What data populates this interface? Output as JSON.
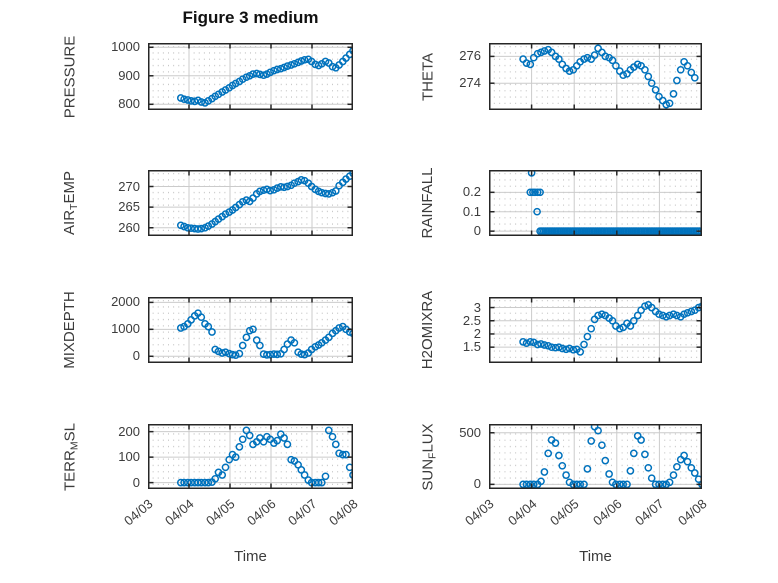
{
  "figure": {
    "title": "Figure 3 medium",
    "background": "#ffffff",
    "grid": true,
    "minor_grid": true,
    "box": true,
    "legend": "none"
  },
  "style": {
    "marker_color": "#0072BD",
    "axis_color": "#262626",
    "major_grid_color": "#cbcbcb",
    "minor_grid_color": "#c0c0c0",
    "text_color": "#3c3c3c",
    "marker": "open-circle"
  },
  "x_axis": {
    "label": "Time",
    "xlim": [
      0,
      5
    ],
    "ticks": [
      0,
      1,
      2,
      3,
      4,
      5
    ],
    "tick_labels": [
      "04/03",
      "04/04",
      "04/05",
      "04/06",
      "04/07",
      "04/08"
    ],
    "tick_label_rotation_deg": 40
  },
  "chart_data": [
    {
      "id": "pressure",
      "type": "scatter",
      "row": 0,
      "col": 0,
      "ylabel": "PRESSURE",
      "ylabel_parts": [
        {
          "t": "PRESSURE"
        }
      ],
      "ylim": [
        780,
        1015
      ],
      "yticks": [
        800,
        900,
        1000
      ],
      "ytick_labels": [
        "800",
        "900",
        "1000"
      ],
      "x": [
        0.8,
        0.88,
        0.97,
        1.05,
        1.14,
        1.22,
        1.3,
        1.39,
        1.47,
        1.56,
        1.64,
        1.72,
        1.81,
        1.89,
        1.98,
        2.06,
        2.14,
        2.23,
        2.31,
        2.4,
        2.48,
        2.56,
        2.65,
        2.73,
        2.82,
        2.9,
        2.98,
        3.07,
        3.15,
        3.24,
        3.32,
        3.4,
        3.49,
        3.57,
        3.66,
        3.74,
        3.82,
        3.91,
        3.99,
        4.08,
        4.16,
        4.24,
        4.33,
        4.41,
        4.5,
        4.58,
        4.66,
        4.75,
        4.83,
        4.92,
        5.0
      ],
      "y": [
        822,
        818,
        815,
        812,
        810,
        814,
        808,
        805,
        812,
        820,
        828,
        835,
        843,
        850,
        858,
        866,
        873,
        880,
        888,
        895,
        900,
        906,
        908,
        905,
        902,
        906,
        912,
        918,
        922,
        925,
        929,
        934,
        938,
        942,
        947,
        952,
        956,
        958,
        950,
        940,
        936,
        942,
        950,
        945,
        932,
        928,
        938,
        950,
        962,
        975,
        988
      ]
    },
    {
      "id": "theta",
      "type": "scatter",
      "row": 0,
      "col": 1,
      "ylabel": "THETA",
      "ylabel_parts": [
        {
          "t": "THETA"
        }
      ],
      "ylim": [
        272,
        277
      ],
      "yticks": [
        274,
        276
      ],
      "ytick_labels": [
        "274",
        "276"
      ],
      "x": [
        0.8,
        0.88,
        0.97,
        1.05,
        1.14,
        1.22,
        1.3,
        1.39,
        1.47,
        1.56,
        1.64,
        1.72,
        1.81,
        1.89,
        1.98,
        2.06,
        2.14,
        2.23,
        2.31,
        2.4,
        2.48,
        2.56,
        2.65,
        2.73,
        2.82,
        2.9,
        2.98,
        3.07,
        3.15,
        3.24,
        3.32,
        3.4,
        3.49,
        3.57,
        3.66,
        3.74,
        3.82,
        3.91,
        3.99,
        4.08,
        4.16,
        4.24,
        4.33,
        4.41,
        4.5,
        4.58,
        4.66,
        4.75,
        4.83
      ],
      "y": [
        275.8,
        275.5,
        275.4,
        275.9,
        276.2,
        276.3,
        276.4,
        276.5,
        276.3,
        276.0,
        275.8,
        275.4,
        275.1,
        274.9,
        275.0,
        275.3,
        275.6,
        275.8,
        275.9,
        275.8,
        276.1,
        276.6,
        276.3,
        276.0,
        275.9,
        275.7,
        275.3,
        274.9,
        274.6,
        274.7,
        275.0,
        275.2,
        275.4,
        275.3,
        275.0,
        274.5,
        274.0,
        273.5,
        273.0,
        272.7,
        272.4,
        272.5,
        273.2,
        274.2,
        275.0,
        275.6,
        275.3,
        274.8,
        274.4
      ]
    },
    {
      "id": "air-temp",
      "type": "scatter",
      "row": 1,
      "col": 0,
      "ylabel": "AIR_TEMP",
      "ylabel_parts": [
        {
          "t": "AIR"
        },
        {
          "t": "T",
          "sub": true
        },
        {
          "t": "EMP"
        }
      ],
      "ylim": [
        258,
        274
      ],
      "yticks": [
        260,
        265,
        270
      ],
      "ytick_labels": [
        "260",
        "265",
        "270"
      ],
      "x": [
        0.8,
        0.88,
        0.97,
        1.05,
        1.14,
        1.22,
        1.3,
        1.39,
        1.47,
        1.56,
        1.64,
        1.72,
        1.81,
        1.89,
        1.98,
        2.06,
        2.14,
        2.23,
        2.31,
        2.4,
        2.48,
        2.56,
        2.65,
        2.73,
        2.82,
        2.9,
        2.98,
        3.07,
        3.15,
        3.24,
        3.32,
        3.4,
        3.49,
        3.57,
        3.66,
        3.74,
        3.82,
        3.91,
        3.99,
        4.08,
        4.16,
        4.24,
        4.33,
        4.41,
        4.5,
        4.58,
        4.66,
        4.75,
        4.83,
        4.92,
        5.0
      ],
      "y": [
        260.6,
        260.3,
        260.0,
        259.9,
        259.8,
        259.7,
        259.8,
        260.0,
        260.4,
        260.9,
        261.5,
        262.1,
        262.7,
        263.3,
        263.8,
        264.3,
        264.9,
        265.6,
        266.3,
        266.7,
        266.4,
        267.2,
        268.2,
        268.8,
        269.1,
        269.3,
        269.0,
        269.2,
        269.6,
        269.9,
        269.8,
        270.0,
        270.3,
        270.8,
        271.2,
        271.6,
        271.4,
        270.8,
        270.0,
        269.3,
        268.8,
        268.5,
        268.3,
        268.2,
        268.5,
        268.9,
        270.2,
        271.0,
        271.8,
        272.5,
        273.2
      ]
    },
    {
      "id": "rainfall",
      "type": "scatter",
      "row": 1,
      "col": 1,
      "ylabel": "RAINFALL",
      "ylabel_parts": [
        {
          "t": "RAINFALL"
        }
      ],
      "ylim": [
        -0.025,
        0.315
      ],
      "yticks": [
        0,
        0.1,
        0.2
      ],
      "ytick_labels": [
        "0",
        "0.1",
        "0.2"
      ],
      "x": [
        0.97,
        1.0,
        1.03,
        1.08,
        1.13,
        1.14,
        1.2
      ],
      "y": [
        0.2,
        0.3,
        0.2,
        0.2,
        0.1,
        0.2,
        0.2
      ],
      "zero_run": {
        "from": 1.2,
        "to": 4.97,
        "step": 0.042,
        "y": 0
      }
    },
    {
      "id": "mixdepth",
      "type": "scatter",
      "row": 2,
      "col": 0,
      "ylabel": "MIXDEPTH",
      "ylabel_parts": [
        {
          "t": "MIXDEPTH"
        }
      ],
      "ylim": [
        -250,
        2200
      ],
      "yticks": [
        0,
        1000,
        2000
      ],
      "ytick_labels": [
        "0",
        "1000",
        "2000"
      ],
      "x": [
        0.8,
        0.88,
        0.97,
        1.05,
        1.14,
        1.22,
        1.3,
        1.39,
        1.47,
        1.56,
        1.64,
        1.72,
        1.81,
        1.89,
        1.98,
        2.06,
        2.14,
        2.23,
        2.31,
        2.4,
        2.48,
        2.56,
        2.65,
        2.73,
        2.82,
        2.9,
        2.98,
        3.07,
        3.15,
        3.24,
        3.32,
        3.4,
        3.49,
        3.57,
        3.66,
        3.74,
        3.82,
        3.91,
        3.99,
        4.08,
        4.16,
        4.24,
        4.33,
        4.41,
        4.5,
        4.58,
        4.66,
        4.75,
        4.83,
        4.92,
        5.0
      ],
      "y": [
        1050,
        1100,
        1200,
        1350,
        1500,
        1600,
        1450,
        1200,
        1100,
        900,
        250,
        180,
        120,
        150,
        100,
        60,
        40,
        100,
        400,
        700,
        950,
        1000,
        600,
        400,
        80,
        50,
        60,
        80,
        70,
        90,
        250,
        450,
        600,
        500,
        150,
        80,
        60,
        120,
        250,
        350,
        420,
        500,
        600,
        700,
        850,
        950,
        1050,
        1100,
        1000,
        900,
        850
      ]
    },
    {
      "id": "h2omixra",
      "type": "scatter",
      "row": 2,
      "col": 1,
      "ylabel": "H2OMIXRA",
      "ylabel_parts": [
        {
          "t": "H2OMIXRA"
        }
      ],
      "ylim": [
        0.9,
        3.4
      ],
      "yticks": [
        1.5,
        2,
        2.5,
        3
      ],
      "ytick_labels": [
        "1.5",
        "2",
        "2.5",
        "3"
      ],
      "x": [
        0.8,
        0.88,
        0.97,
        1.05,
        1.14,
        1.22,
        1.3,
        1.39,
        1.47,
        1.56,
        1.64,
        1.72,
        1.81,
        1.89,
        1.98,
        2.06,
        2.14,
        2.23,
        2.31,
        2.4,
        2.48,
        2.56,
        2.65,
        2.73,
        2.82,
        2.9,
        2.98,
        3.07,
        3.15,
        3.24,
        3.32,
        3.4,
        3.49,
        3.57,
        3.66,
        3.74,
        3.82,
        3.91,
        3.99,
        4.08,
        4.16,
        4.24,
        4.33,
        4.41,
        4.5,
        4.58,
        4.66,
        4.75,
        4.83,
        4.92,
        5.0
      ],
      "y": [
        1.7,
        1.65,
        1.7,
        1.68,
        1.6,
        1.62,
        1.58,
        1.55,
        1.5,
        1.48,
        1.5,
        1.45,
        1.42,
        1.45,
        1.4,
        1.42,
        1.32,
        1.6,
        1.9,
        2.2,
        2.55,
        2.7,
        2.75,
        2.7,
        2.6,
        2.5,
        2.3,
        2.2,
        2.25,
        2.4,
        2.3,
        2.5,
        2.7,
        2.9,
        3.05,
        3.1,
        3.0,
        2.85,
        2.75,
        2.7,
        2.65,
        2.7,
        2.75,
        2.7,
        2.65,
        2.75,
        2.8,
        2.85,
        2.9,
        3.0,
        3.05
      ]
    },
    {
      "id": "terr-msl",
      "type": "scatter",
      "row": 3,
      "col": 0,
      "ylabel": "TERR_MSL",
      "ylabel_parts": [
        {
          "t": "TERR"
        },
        {
          "t": "M",
          "sub": true
        },
        {
          "t": "SL"
        }
      ],
      "ylim": [
        -25,
        230
      ],
      "yticks": [
        0,
        100,
        200
      ],
      "ytick_labels": [
        "0",
        "100",
        "200"
      ],
      "x": [
        0.8,
        0.88,
        0.97,
        1.05,
        1.14,
        1.22,
        1.3,
        1.39,
        1.47,
        1.56,
        1.64,
        1.72,
        1.81,
        1.89,
        1.98,
        2.06,
        2.14,
        2.23,
        2.31,
        2.4,
        2.48,
        2.56,
        2.65,
        2.73,
        2.82,
        2.9,
        2.98,
        3.07,
        3.15,
        3.24,
        3.32,
        3.4,
        3.49,
        3.57,
        3.66,
        3.74,
        3.82,
        3.91,
        3.99,
        4.08,
        4.16,
        4.24,
        4.33,
        4.41,
        4.5,
        4.58,
        4.66,
        4.75,
        4.83,
        4.92,
        5.0
      ],
      "y": [
        0,
        0,
        0,
        0,
        0,
        0,
        0,
        0,
        0,
        2,
        15,
        40,
        30,
        60,
        90,
        110,
        100,
        140,
        170,
        205,
        185,
        150,
        160,
        175,
        160,
        180,
        170,
        155,
        165,
        190,
        175,
        150,
        90,
        85,
        70,
        50,
        30,
        10,
        0,
        0,
        0,
        0,
        25,
        205,
        180,
        150,
        115,
        110,
        110,
        60,
        30
      ]
    },
    {
      "id": "sun-flux",
      "type": "scatter",
      "row": 3,
      "col": 1,
      "ylabel": "SUN_FLUX",
      "ylabel_parts": [
        {
          "t": "SUN"
        },
        {
          "t": "F",
          "sub": true
        },
        {
          "t": "LUX"
        }
      ],
      "ylim": [
        -45,
        585
      ],
      "yticks": [
        0,
        500
      ],
      "ytick_labels": [
        "0",
        "500"
      ],
      "x": [
        0.8,
        0.88,
        0.97,
        1.05,
        1.14,
        1.22,
        1.3,
        1.39,
        1.47,
        1.56,
        1.64,
        1.72,
        1.81,
        1.89,
        1.98,
        2.06,
        2.14,
        2.23,
        2.31,
        2.4,
        2.48,
        2.56,
        2.65,
        2.73,
        2.82,
        2.9,
        2.98,
        3.07,
        3.15,
        3.24,
        3.32,
        3.4,
        3.49,
        3.57,
        3.66,
        3.74,
        3.82,
        3.91,
        3.99,
        4.08,
        4.16,
        4.24,
        4.33,
        4.41,
        4.5,
        4.58,
        4.66,
        4.75,
        4.83,
        4.92,
        5.0
      ],
      "y": [
        0,
        0,
        0,
        0,
        0,
        30,
        120,
        300,
        430,
        400,
        280,
        180,
        90,
        20,
        0,
        0,
        0,
        0,
        150,
        420,
        560,
        520,
        380,
        230,
        100,
        20,
        0,
        0,
        0,
        0,
        130,
        300,
        470,
        430,
        290,
        160,
        60,
        0,
        0,
        0,
        0,
        20,
        90,
        170,
        240,
        280,
        220,
        160,
        110,
        50,
        0
      ]
    }
  ]
}
